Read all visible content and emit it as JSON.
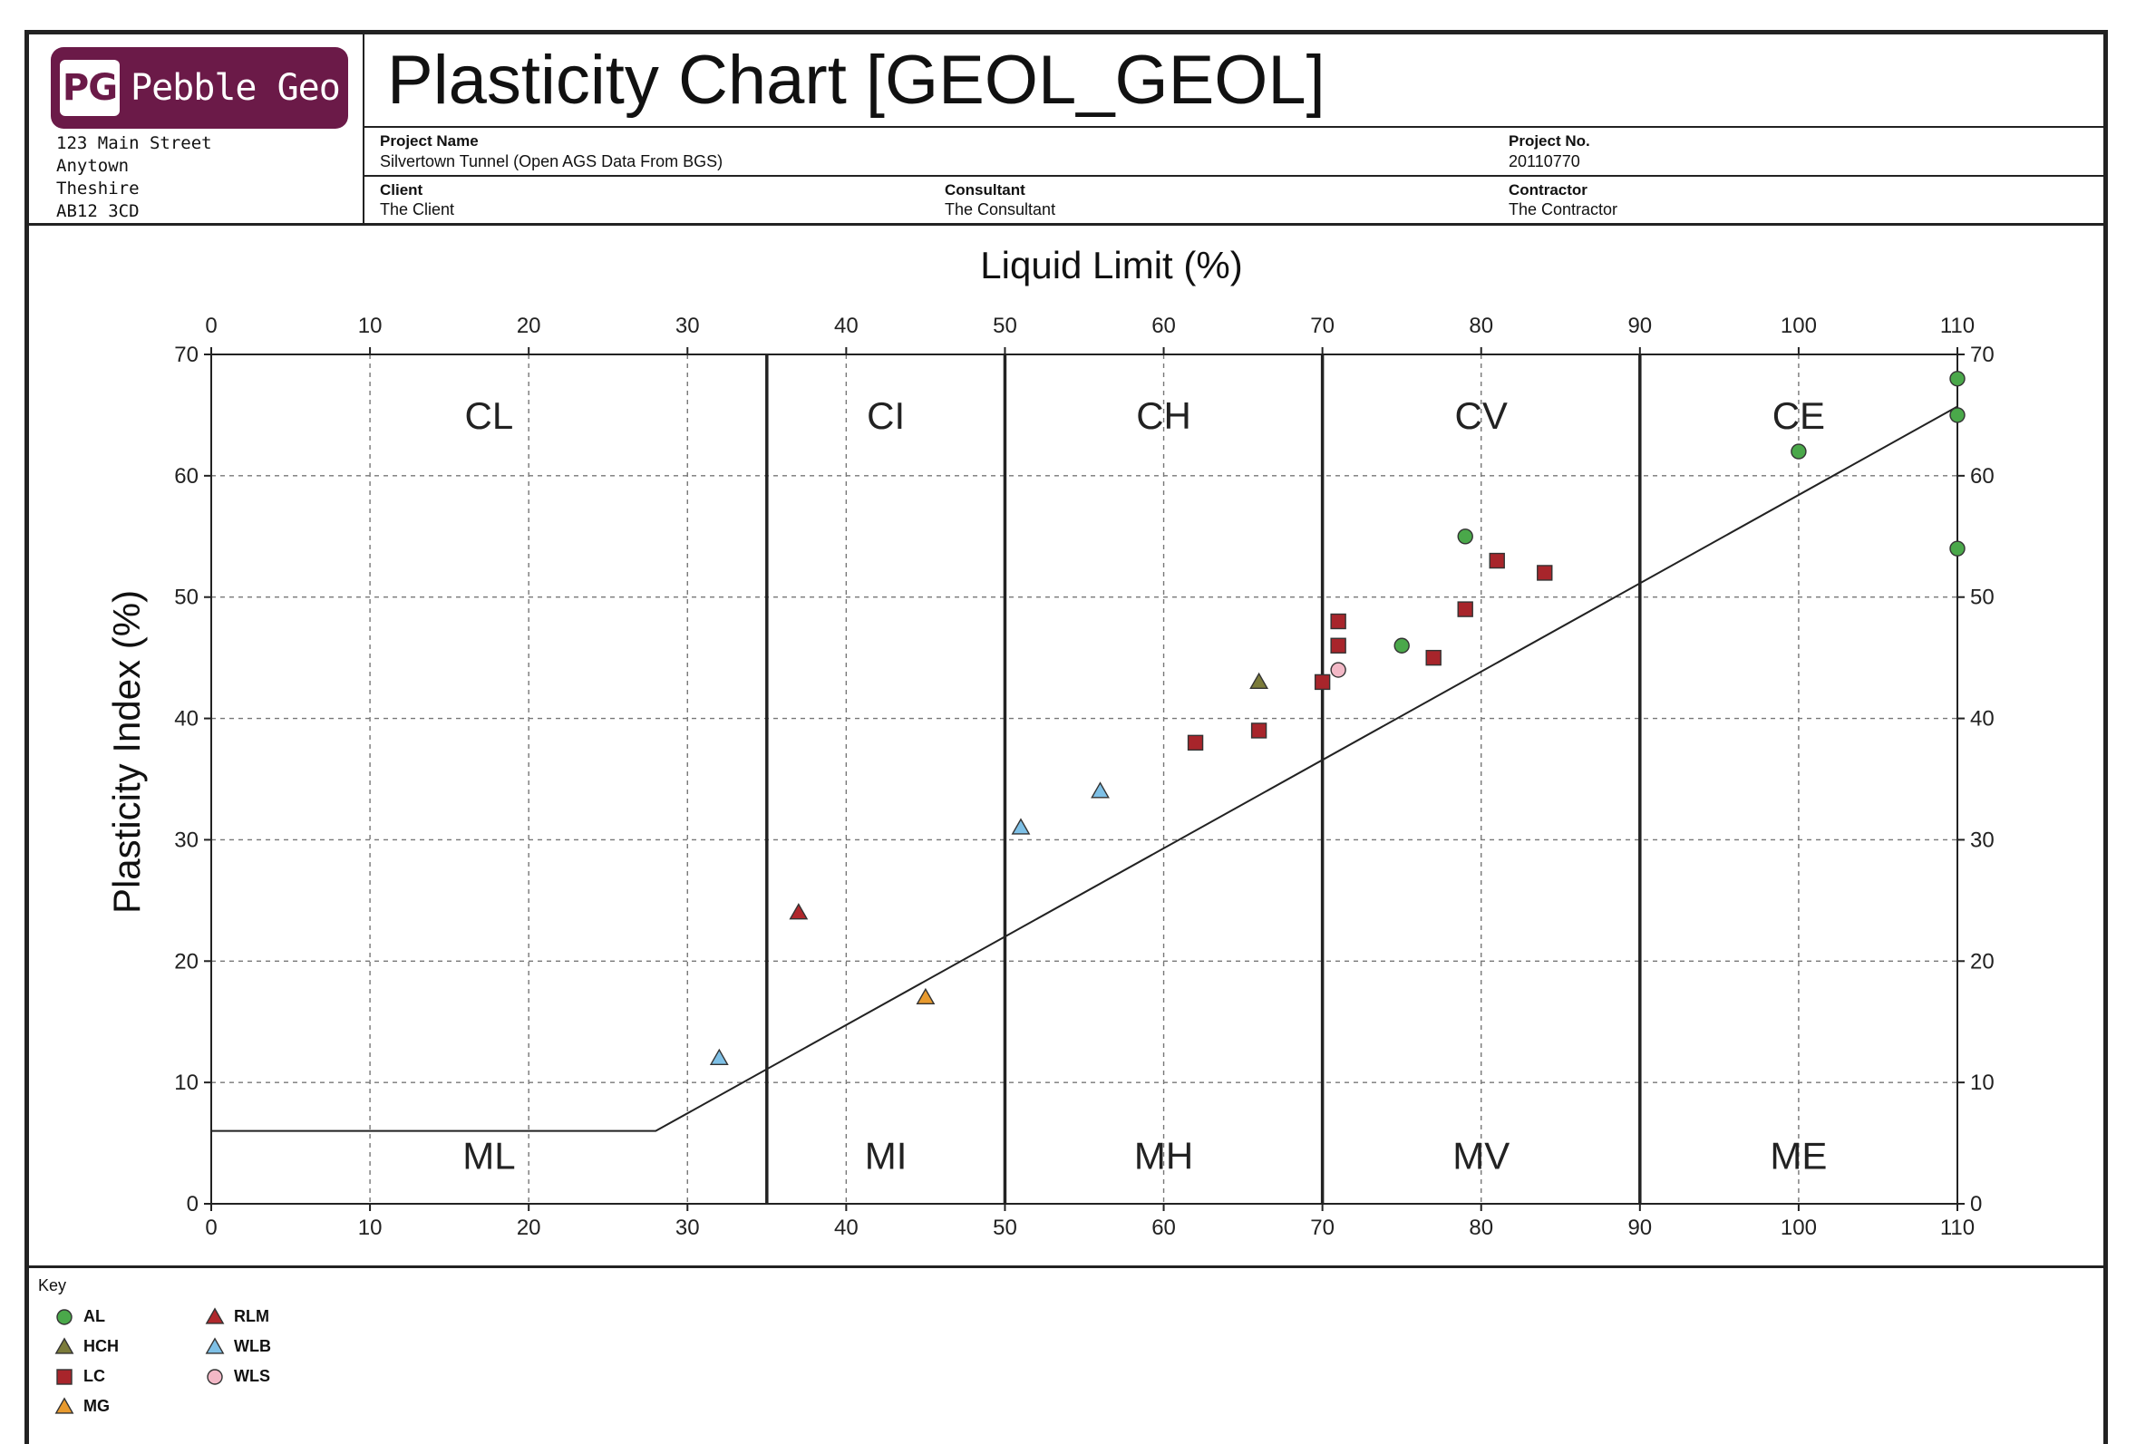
{
  "brand": {
    "logo_mark": "PG",
    "logo_name": "Pebble Geo",
    "color": "#6b1a48",
    "address": [
      "123 Main Street",
      "Anytown",
      "Theshire",
      "AB12 3CD"
    ]
  },
  "title": "Plasticity Chart [GEOL_GEOL]",
  "project": {
    "name_label": "Project Name",
    "name": "Silvertown Tunnel (Open AGS Data From BGS)",
    "no_label": "Project No.",
    "no": "20110770",
    "client_label": "Client",
    "client": "The Client",
    "consultant_label": "Consultant",
    "consultant": "The Consultant",
    "contractor_label": "Contractor",
    "contractor": "The Contractor"
  },
  "key": {
    "title": "Key"
  },
  "chart_data": {
    "type": "scatter",
    "xlabel": "Liquid Limit (%)",
    "ylabel": "Plasticity Index (%)",
    "xlim": [
      0,
      110
    ],
    "ylim": [
      0,
      70
    ],
    "xticks": [
      0,
      10,
      20,
      30,
      40,
      50,
      60,
      70,
      80,
      90,
      100,
      110
    ],
    "yticks": [
      0,
      10,
      20,
      30,
      40,
      50,
      60,
      70
    ],
    "grid": true,
    "zone_boundaries": [
      35,
      50,
      70,
      90
    ],
    "a_line": [
      [
        0,
        6
      ],
      [
        28,
        6
      ],
      [
        110,
        65.7
      ]
    ],
    "zones_upper": [
      {
        "label": "CL",
        "x": 17.5
      },
      {
        "label": "CI",
        "x": 42.5
      },
      {
        "label": "CH",
        "x": 60
      },
      {
        "label": "CV",
        "x": 80
      },
      {
        "label": "CE",
        "x": 100
      }
    ],
    "zones_lower": [
      {
        "label": "ML",
        "x": 17.5
      },
      {
        "label": "MI",
        "x": 42.5
      },
      {
        "label": "MH",
        "x": 60
      },
      {
        "label": "MV",
        "x": 80
      },
      {
        "label": "ME",
        "x": 100
      }
    ],
    "upper_label_y": 65,
    "lower_label_y": 4,
    "series": [
      {
        "name": "AL",
        "marker": "circle",
        "color": "#4aa84a",
        "points": [
          [
            75,
            46
          ],
          [
            79,
            55
          ],
          [
            100,
            62
          ],
          [
            110,
            68
          ],
          [
            110,
            65
          ],
          [
            110,
            54
          ]
        ]
      },
      {
        "name": "HCH",
        "marker": "triangle",
        "color": "#7b7b3a",
        "points": [
          [
            66,
            43
          ]
        ]
      },
      {
        "name": "LC",
        "marker": "square",
        "color": "#a8252b",
        "points": [
          [
            62,
            38
          ],
          [
            66,
            39
          ],
          [
            70,
            43
          ],
          [
            71,
            46
          ],
          [
            71,
            48
          ],
          [
            77,
            45
          ],
          [
            79,
            49
          ],
          [
            81,
            53
          ],
          [
            84,
            52
          ]
        ]
      },
      {
        "name": "MG",
        "marker": "triangle",
        "color": "#e89a2e",
        "points": [
          [
            45,
            17
          ]
        ]
      },
      {
        "name": "RLM",
        "marker": "triangle",
        "color": "#b0282c",
        "points": [
          [
            37,
            24
          ]
        ]
      },
      {
        "name": "WLB",
        "marker": "triangle",
        "color": "#7ec0e6",
        "points": [
          [
            32,
            12
          ],
          [
            51,
            31
          ],
          [
            56,
            34
          ]
        ]
      },
      {
        "name": "WLS",
        "marker": "circle",
        "color": "#f2b8c6",
        "points": [
          [
            71,
            44
          ]
        ]
      }
    ]
  }
}
